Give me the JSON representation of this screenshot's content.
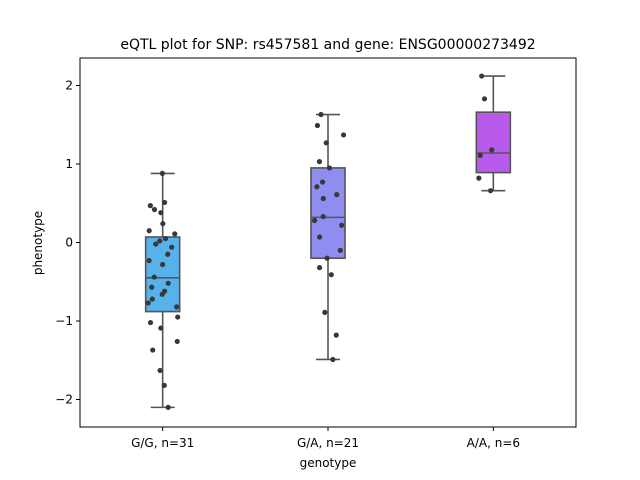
{
  "chart_data": {
    "type": "box",
    "title": "eQTL plot for SNP: rs457581 and gene: ENSG00000273492",
    "xlabel": "genotype",
    "ylabel": "phenotype",
    "ylim": [
      -2.35,
      2.35
    ],
    "yticks": [
      -2,
      -1,
      0,
      1,
      2
    ],
    "ytick_labels": [
      "−2",
      "−1",
      "0",
      "1",
      "2"
    ],
    "grid": false,
    "categories": [
      "G/G, n=31",
      "G/A, n=21",
      "A/A, n=6"
    ],
    "colors": [
      "#57b2ec",
      "#8f8df0",
      "#b85aec"
    ],
    "point_color": "#383838",
    "boxes": [
      {
        "q1": -0.88,
        "median": -0.45,
        "q3": 0.07,
        "whisker_low": -2.1,
        "whisker_high": 0.88
      },
      {
        "q1": -0.2,
        "median": 0.32,
        "q3": 0.95,
        "whisker_low": -1.49,
        "whisker_high": 1.63
      },
      {
        "q1": 0.89,
        "median": 1.14,
        "q3": 1.66,
        "whisker_low": 0.66,
        "whisker_high": 2.12
      }
    ],
    "points": [
      [
        0.88,
        0.51,
        0.47,
        0.42,
        0.38,
        0.24,
        0.15,
        0.11,
        0.05,
        0.02,
        -0.02,
        -0.06,
        -0.15,
        -0.23,
        -0.28,
        -0.44,
        -0.52,
        -0.57,
        -0.62,
        -0.66,
        -0.72,
        -0.77,
        -0.82,
        -0.95,
        -1.02,
        -1.09,
        -1.26,
        -1.37,
        -1.63,
        -1.82,
        -2.1
      ],
      [
        1.63,
        1.49,
        1.37,
        1.27,
        1.03,
        0.95,
        0.77,
        0.71,
        0.61,
        0.56,
        0.33,
        0.28,
        0.22,
        0.07,
        -0.1,
        -0.2,
        -0.32,
        -0.41,
        -0.89,
        -1.18,
        -1.49
      ],
      [
        2.12,
        1.83,
        1.18,
        1.11,
        0.82,
        0.66
      ]
    ]
  }
}
